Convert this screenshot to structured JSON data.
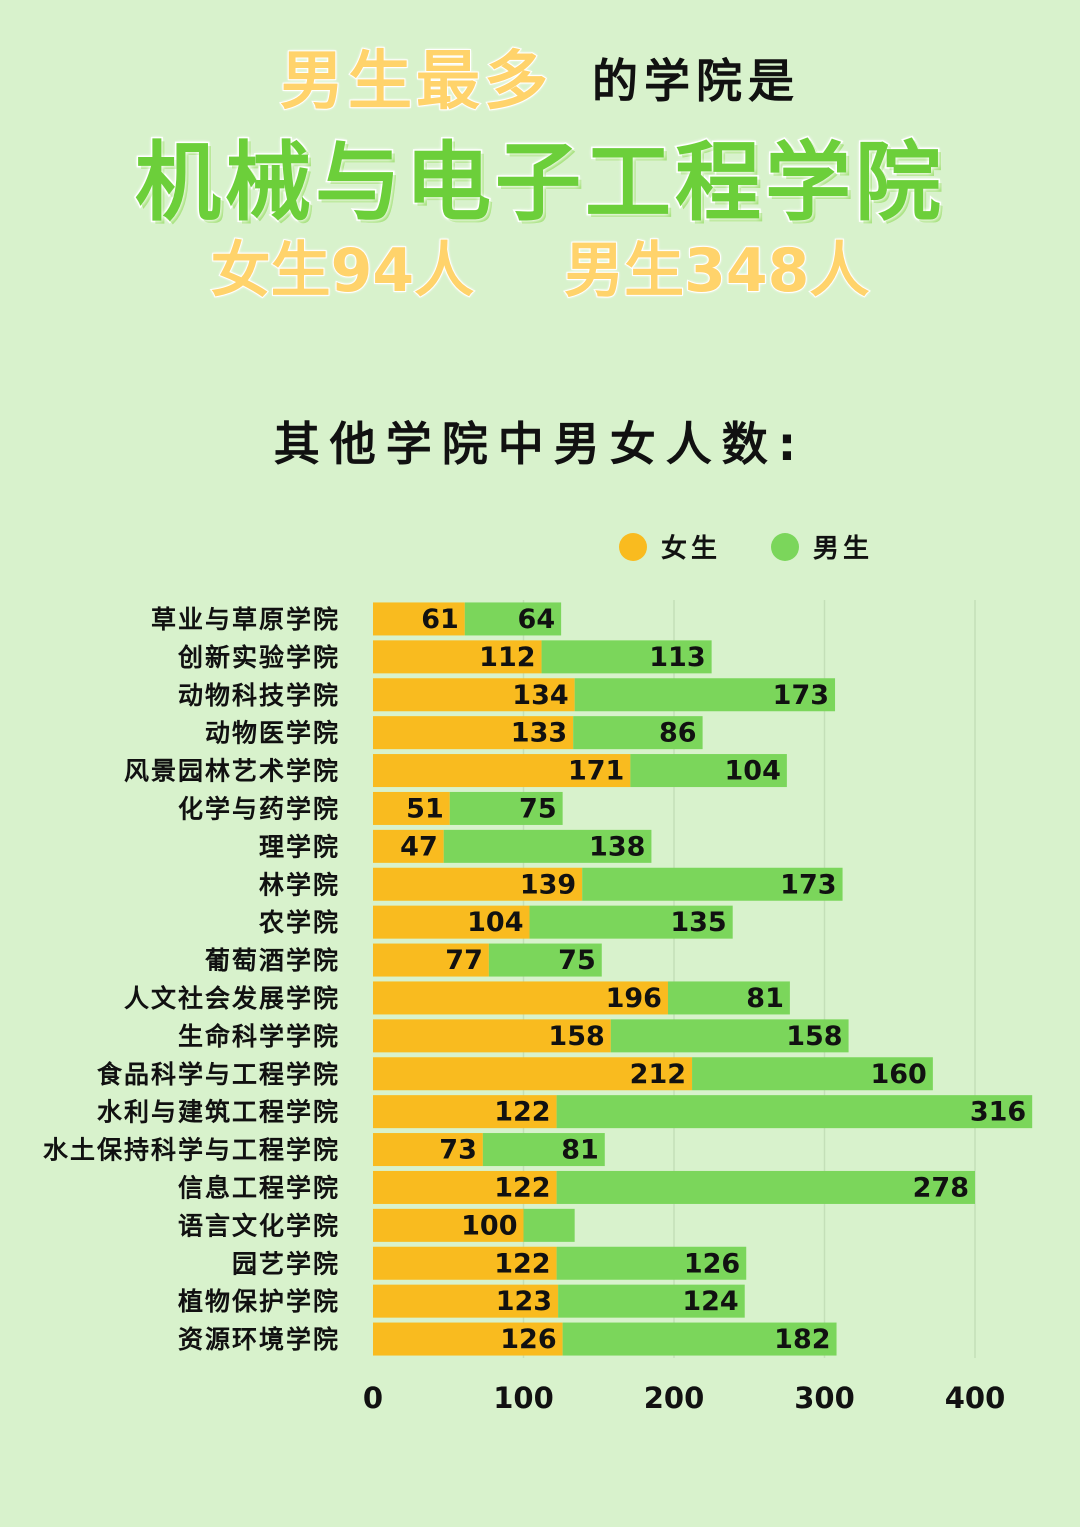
{
  "header": {
    "line1_highlight": "男生最多",
    "line1_rest": "的学院是",
    "college": "机械与电子工程学院",
    "female_stat": "女生94人",
    "male_stat": "男生348人"
  },
  "subtitle": "其他学院中男女人数:",
  "colors": {
    "female": "#f9bb1f",
    "male": "#7bd65b",
    "background": "#d8f2cc",
    "grid": "#c4dfb8"
  },
  "chart_data": {
    "type": "bar",
    "orientation": "horizontal",
    "stacked": true,
    "categories": [
      "草业与草原学院",
      "创新实验学院",
      "动物科技学院",
      "动物医学院",
      "风景园林艺术学院",
      "化学与药学院",
      "理学院",
      "林学院",
      "农学院",
      "葡萄酒学院",
      "人文社会发展学院",
      "生命科学学院",
      "食品科学与工程学院",
      "水利与建筑工程学院",
      "水土保持科学与工程学院",
      "信息工程学院",
      "语言文化学院",
      "园艺学院",
      "植物保护学院",
      "资源环境学院"
    ],
    "series": [
      {
        "name": "女生",
        "values": [
          61,
          112,
          134,
          133,
          171,
          51,
          47,
          139,
          104,
          77,
          196,
          158,
          212,
          122,
          73,
          122,
          100,
          122,
          123,
          126
        ]
      },
      {
        "name": "男生",
        "values": [
          64,
          113,
          173,
          86,
          104,
          75,
          138,
          173,
          135,
          75,
          81,
          158,
          160,
          316,
          81,
          278,
          34,
          126,
          124,
          182
        ]
      }
    ],
    "value_labels": {
      "女生": [
        "61",
        "112",
        "134",
        "133",
        "171",
        "51",
        "47",
        "139",
        "104",
        "77",
        "196",
        "158",
        "212",
        "122",
        "73",
        "122",
        "100",
        "122",
        "123",
        "126"
      ],
      "男生": [
        "64",
        "113",
        "173",
        "86",
        "104",
        "75",
        "138",
        "173",
        "135",
        "75",
        "81",
        "158",
        "160",
        "316",
        "81",
        "278",
        "",
        "126",
        "124",
        "182"
      ]
    },
    "xlim": [
      0,
      420
    ],
    "xticks": [
      "0",
      "100",
      "200",
      "300",
      "400"
    ],
    "xtick_values": [
      0,
      100,
      200,
      300,
      400
    ],
    "grid": true,
    "legend_position": "top-right"
  }
}
